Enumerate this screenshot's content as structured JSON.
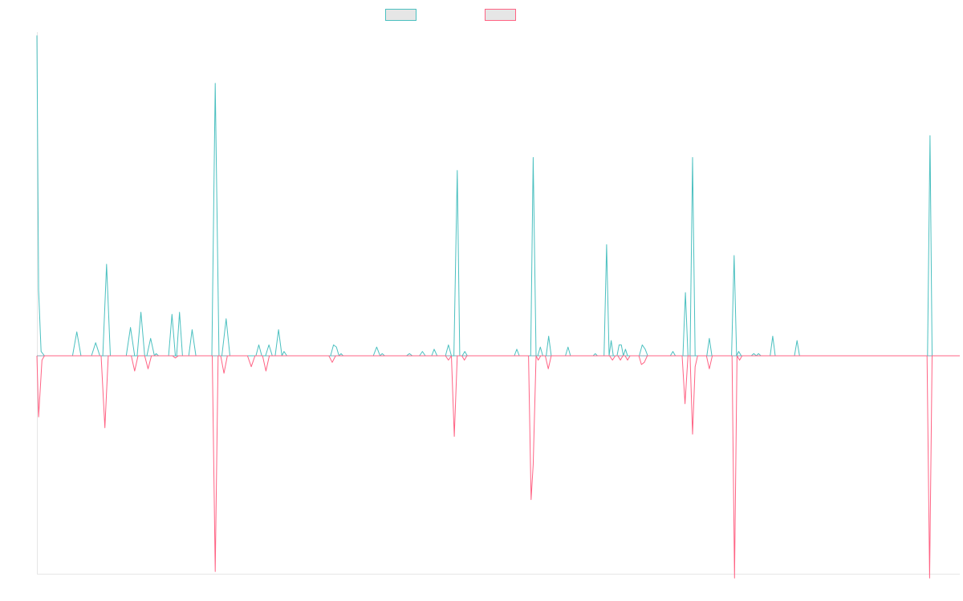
{
  "chart_data": {
    "type": "line",
    "title": "",
    "xlabel": "",
    "ylabel": "",
    "grid": false,
    "legend_position": "top",
    "ylim": [
      -100,
      150
    ],
    "series": [
      {
        "name": "",
        "color": "#4bc0c0",
        "points": [
          [
            0,
            147
          ],
          [
            0.4,
            30
          ],
          [
            1,
            2
          ],
          [
            1.8,
            0
          ],
          [
            8.5,
            0
          ],
          [
            9.5,
            11
          ],
          [
            10.5,
            0
          ],
          [
            13,
            0
          ],
          [
            14,
            6
          ],
          [
            15,
            0
          ],
          [
            15.7,
            0
          ],
          [
            16.6,
            42
          ],
          [
            17.5,
            0
          ],
          [
            21.3,
            0
          ],
          [
            22.3,
            13
          ],
          [
            23.3,
            0
          ],
          [
            23.9,
            0
          ],
          [
            24.8,
            20
          ],
          [
            25.7,
            0
          ],
          [
            26.2,
            0
          ],
          [
            27.1,
            8
          ],
          [
            28,
            0
          ],
          [
            28.4,
            1
          ],
          [
            29,
            0
          ],
          [
            31.4,
            0
          ],
          [
            32.2,
            19
          ],
          [
            33,
            0
          ],
          [
            33.3,
            0
          ],
          [
            34,
            20
          ],
          [
            34.7,
            0
          ],
          [
            36.2,
            0
          ],
          [
            37,
            12
          ],
          [
            37.9,
            0
          ],
          [
            41.7,
            0
          ],
          [
            42.5,
            125
          ],
          [
            43.4,
            0
          ],
          [
            44.1,
            0
          ],
          [
            45.1,
            17
          ],
          [
            46,
            0
          ],
          [
            52.2,
            0
          ],
          [
            52.9,
            5
          ],
          [
            53.6,
            0
          ],
          [
            54.5,
            0
          ],
          [
            55.3,
            5
          ],
          [
            56.1,
            0
          ],
          [
            56.8,
            0
          ],
          [
            57.6,
            12
          ],
          [
            58.4,
            0
          ],
          [
            58.9,
            2
          ],
          [
            59.6,
            0
          ],
          [
            70,
            0
          ],
          [
            70.7,
            5
          ],
          [
            71.4,
            4
          ],
          [
            72,
            0
          ],
          [
            72.5,
            1
          ],
          [
            73,
            0
          ],
          [
            80.2,
            0
          ],
          [
            81,
            4
          ],
          [
            81.8,
            0
          ],
          [
            82.3,
            1
          ],
          [
            82.9,
            0
          ],
          [
            88.1,
            0
          ],
          [
            88.8,
            1
          ],
          [
            89.5,
            0
          ],
          [
            91.2,
            0
          ],
          [
            91.9,
            2
          ],
          [
            92.6,
            0
          ],
          [
            94.1,
            0
          ],
          [
            94.7,
            3
          ],
          [
            95.4,
            0
          ],
          [
            97.4,
            0
          ],
          [
            98.1,
            5
          ],
          [
            98.8,
            0
          ],
          [
            99.4,
            0
          ],
          [
            100.2,
            85
          ],
          [
            100.8,
            0
          ],
          [
            101.4,
            0
          ],
          [
            102,
            2
          ],
          [
            102.6,
            0
          ],
          [
            113.8,
            0
          ],
          [
            114.4,
            3
          ],
          [
            115,
            0
          ],
          [
            117.7,
            0
          ],
          [
            118.3,
            91
          ],
          [
            119,
            0
          ],
          [
            119.4,
            0
          ],
          [
            120,
            4
          ],
          [
            120.6,
            0
          ],
          [
            121.4,
            0
          ],
          [
            122,
            9
          ],
          [
            122.6,
            0
          ],
          [
            126,
            0
          ],
          [
            126.6,
            4
          ],
          [
            127.2,
            0
          ],
          [
            132.6,
            0
          ],
          [
            133.1,
            1
          ],
          [
            133.6,
            0
          ],
          [
            135.2,
            0
          ],
          [
            135.8,
            51
          ],
          [
            136.4,
            0
          ],
          [
            136.9,
            7
          ],
          [
            137.4,
            0
          ],
          [
            138.3,
            0
          ],
          [
            138.8,
            5
          ],
          [
            139.3,
            5
          ],
          [
            139.8,
            0
          ],
          [
            140.3,
            3
          ],
          [
            140.8,
            0
          ],
          [
            143.6,
            0
          ],
          [
            144.3,
            5
          ],
          [
            145,
            3
          ],
          [
            145.6,
            0
          ],
          [
            151,
            0
          ],
          [
            151.6,
            2
          ],
          [
            152.2,
            0
          ],
          [
            154,
            0
          ],
          [
            154.6,
            29
          ],
          [
            155.2,
            0
          ],
          [
            155.7,
            0
          ],
          [
            156.3,
            91
          ],
          [
            156.9,
            0
          ],
          [
            159.7,
            0
          ],
          [
            160.3,
            8
          ],
          [
            160.9,
            0
          ],
          [
            165.6,
            0
          ],
          [
            166.2,
            46
          ],
          [
            166.8,
            0
          ],
          [
            167.3,
            2
          ],
          [
            167.9,
            0
          ],
          [
            170.3,
            0
          ],
          [
            170.9,
            1
          ],
          [
            171.5,
            0
          ],
          [
            172,
            1
          ],
          [
            172.6,
            0
          ],
          [
            174.8,
            0
          ],
          [
            175.4,
            9
          ],
          [
            176,
            0
          ],
          [
            180.6,
            0
          ],
          [
            181.2,
            7
          ],
          [
            181.8,
            0
          ],
          [
            212.3,
            0
          ],
          [
            212.9,
            101
          ],
          [
            213.4,
            0
          ],
          [
            220,
            0
          ]
        ]
      },
      {
        "name": "",
        "color": "#ff6384",
        "points": [
          [
            0,
            0
          ],
          [
            0.4,
            -28
          ],
          [
            1.2,
            -2
          ],
          [
            1.8,
            0
          ],
          [
            13,
            0
          ],
          [
            14,
            0
          ],
          [
            15.3,
            0
          ],
          [
            16.2,
            -33
          ],
          [
            17,
            0
          ],
          [
            22.5,
            0
          ],
          [
            23.3,
            -7
          ],
          [
            24.1,
            0
          ],
          [
            25.7,
            0
          ],
          [
            26.5,
            -6
          ],
          [
            27.3,
            0
          ],
          [
            32.3,
            0
          ],
          [
            33,
            -1
          ],
          [
            33.7,
            0
          ],
          [
            41.8,
            0
          ],
          [
            42.5,
            -99
          ],
          [
            43.2,
            0
          ],
          [
            43.8,
            0
          ],
          [
            44.6,
            -8
          ],
          [
            45.4,
            0
          ],
          [
            50.2,
            0
          ],
          [
            51.1,
            -5
          ],
          [
            52,
            0
          ],
          [
            53.8,
            0
          ],
          [
            54.6,
            -7
          ],
          [
            55.4,
            0
          ],
          [
            69.6,
            0
          ],
          [
            70.4,
            -3
          ],
          [
            71.2,
            0
          ],
          [
            97.4,
            0
          ],
          [
            98.1,
            -2
          ],
          [
            98.8,
            0
          ],
          [
            99.5,
            -37
          ],
          [
            100.2,
            0
          ],
          [
            101.3,
            0
          ],
          [
            101.9,
            -2
          ],
          [
            102.5,
            0
          ],
          [
            117.2,
            0
          ],
          [
            117.8,
            -66
          ],
          [
            118.3,
            -50
          ],
          [
            119,
            0
          ],
          [
            119.5,
            -2
          ],
          [
            120.1,
            0
          ],
          [
            121.2,
            0
          ],
          [
            121.9,
            -6
          ],
          [
            122.6,
            0
          ],
          [
            136.5,
            0
          ],
          [
            137.2,
            -2
          ],
          [
            137.9,
            0
          ],
          [
            138.5,
            0
          ],
          [
            139.1,
            -2
          ],
          [
            139.7,
            0
          ],
          [
            140.2,
            0
          ],
          [
            140.8,
            -2
          ],
          [
            141.4,
            0
          ],
          [
            143.5,
            0
          ],
          [
            144.1,
            -4
          ],
          [
            144.8,
            -3
          ],
          [
            145.5,
            0
          ],
          [
            153.8,
            0
          ],
          [
            154.5,
            -22
          ],
          [
            155.2,
            0
          ],
          [
            155.7,
            0
          ],
          [
            156.3,
            -36
          ],
          [
            156.9,
            -5
          ],
          [
            157.5,
            0
          ],
          [
            159.6,
            0
          ],
          [
            160.3,
            -6
          ],
          [
            161,
            0
          ],
          [
            165.7,
            0
          ],
          [
            166.3,
            -102
          ],
          [
            166.9,
            0
          ],
          [
            167.5,
            -2
          ],
          [
            168.1,
            0
          ],
          [
            212.2,
            0
          ],
          [
            212.8,
            -102
          ],
          [
            213.4,
            0
          ],
          [
            220,
            0
          ]
        ]
      }
    ],
    "xlim": [
      0,
      220
    ]
  }
}
